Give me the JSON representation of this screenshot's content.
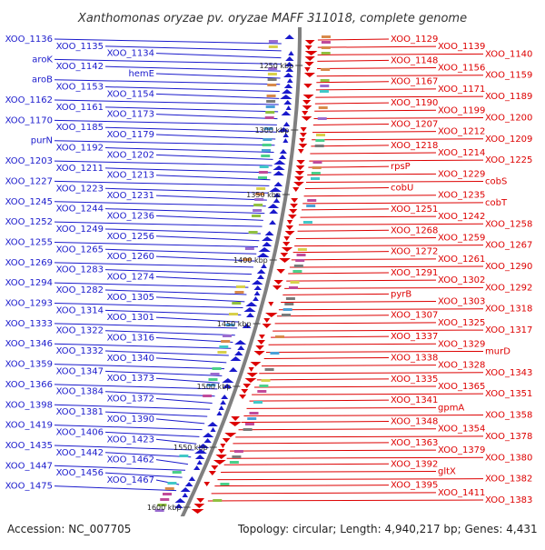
{
  "title": "Xanthomonas oryzae pv. oryzae MAFF 311018, complete genome",
  "footer": {
    "accession": "Accession: NC_007705",
    "topology": "Topology: circular; Length: 4,940,217 bp; Genes: 4,431"
  },
  "colors": {
    "plus": "#1a1acc",
    "minus": "#dd0000",
    "backbone": "#808080"
  },
  "kbp_ticks": [
    {
      "label": "1250 kbp",
      "t": 0.05
    },
    {
      "label": "1300 kbp",
      "t": 0.22
    },
    {
      "label": "1350 kbp",
      "t": 0.39
    },
    {
      "label": "1400 kbp",
      "t": 0.56
    },
    {
      "label": "1450 kbp",
      "t": 0.73
    },
    {
      "label": "1500 kbp",
      "t": 0.87
    },
    {
      "label": "1550 kbp",
      "t": 0.98
    },
    {
      "label": "1600 kbp",
      "t": 1.0
    }
  ],
  "left_labels": [
    "XOO_1136",
    "XOO_1135",
    "XOO_1134",
    "aroK",
    "XOO_1142",
    "hemE",
    "aroB",
    "XOO_1153",
    "XOO_1154",
    "XOO_1162",
    "XOO_1161",
    "XOO_1173",
    "XOO_1170",
    "XOO_1185",
    "XOO_1179",
    "purN",
    "XOO_1192",
    "XOO_1202",
    "XOO_1203",
    "XOO_1211",
    "XOO_1213",
    "XOO_1227",
    "XOO_1223",
    "XOO_1231",
    "XOO_1245",
    "XOO_1244",
    "XOO_1236",
    "XOO_1252",
    "XOO_1249",
    "XOO_1256",
    "XOO_1255",
    "XOO_1265",
    "XOO_1260",
    "XOO_1269",
    "XOO_1283",
    "XOO_1274",
    "XOO_1294",
    "XOO_1282",
    "XOO_1305",
    "XOO_1293",
    "XOO_1314",
    "XOO_1301",
    "XOO_1333",
    "XOO_1322",
    "XOO_1316",
    "XOO_1346",
    "XOO_1332",
    "XOO_1340",
    "XOO_1359",
    "XOO_1347",
    "XOO_1373",
    "XOO_1366",
    "XOO_1384",
    "XOO_1372",
    "XOO_1398",
    "XOO_1381",
    "XOO_1390",
    "XOO_1419",
    "XOO_1406",
    "XOO_1423",
    "XOO_1435",
    "XOO_1442",
    "XOO_1462",
    "XOO_1447",
    "XOO_1456",
    "XOO_1467",
    "XOO_1475"
  ],
  "right_labels": [
    "XOO_1129",
    "XOO_1139",
    "XOO_1140",
    "XOO_1148",
    "XOO_1156",
    "XOO_1159",
    "XOO_1167",
    "XOO_1171",
    "XOO_1189",
    "XOO_1190",
    "XOO_1199",
    "XOO_1200",
    "XOO_1207",
    "XOO_1212",
    "XOO_1209",
    "XOO_1218",
    "XOO_1214",
    "XOO_1225",
    "rpsP",
    "XOO_1229",
    "cobS",
    "cobU",
    "XOO_1235",
    "cobT",
    "XOO_1251",
    "XOO_1242",
    "XOO_1258",
    "XOO_1268",
    "XOO_1259",
    "XOO_1267",
    "XOO_1272",
    "XOO_1261",
    "XOO_1290",
    "XOO_1291",
    "XOO_1302",
    "XOO_1292",
    "pyrB",
    "XOO_1303",
    "XOO_1318",
    "XOO_1307",
    "XOO_1325",
    "XOO_1317",
    "XOO_1337",
    "XOO_1329",
    "murD",
    "XOO_1338",
    "XOO_1328",
    "XOO_1343",
    "XOO_1335",
    "XOO_1365",
    "XOO_1351",
    "XOO_1341",
    "gpmA",
    "XOO_1358",
    "XOO_1348",
    "XOO_1354",
    "XOO_1378",
    "XOO_1363",
    "XOO_1379",
    "XOO_1380",
    "XOO_1392",
    "gltX",
    "XOO_1382",
    "XOO_1395",
    "XOO_1411",
    "XOO_1383"
  ]
}
